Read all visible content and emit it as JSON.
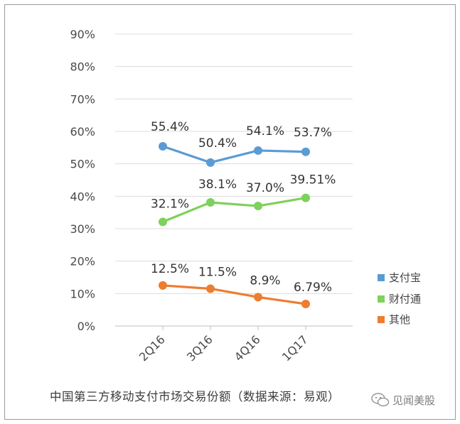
{
  "chart_data": {
    "type": "line",
    "title": "中国第三方移动支付市场交易份额（数据来源：易观）",
    "categories": [
      "2Q16",
      "3Q16",
      "4Q16",
      "1Q17"
    ],
    "ylim": [
      0,
      90
    ],
    "yticks": [
      "0%",
      "10%",
      "20%",
      "30%",
      "40%",
      "50%",
      "60%",
      "70%",
      "80%",
      "90%"
    ],
    "ytick_values": [
      0,
      10,
      20,
      30,
      40,
      50,
      60,
      70,
      80,
      90
    ],
    "grid": true,
    "legend_position": "right",
    "series": [
      {
        "name": "支付宝",
        "color": "#5b9bd5",
        "values": [
          55.4,
          50.4,
          54.1,
          53.7
        ],
        "labels": [
          "55.4%",
          "50.4%",
          "54.1%",
          "53.7%"
        ]
      },
      {
        "name": "财付通",
        "color": "#7ed15b",
        "values": [
          32.1,
          38.1,
          37.0,
          39.51
        ],
        "labels": [
          "32.1%",
          "38.1%",
          "37.0%",
          "39.51%"
        ]
      },
      {
        "name": "其他",
        "color": "#ed7d31",
        "values": [
          12.5,
          11.5,
          8.9,
          6.79
        ],
        "labels": [
          "12.5%",
          "11.5%",
          "8.9%",
          "6.79%"
        ]
      }
    ]
  },
  "watermark": {
    "text": "见闻美股",
    "icon": "wechat-icon"
  }
}
